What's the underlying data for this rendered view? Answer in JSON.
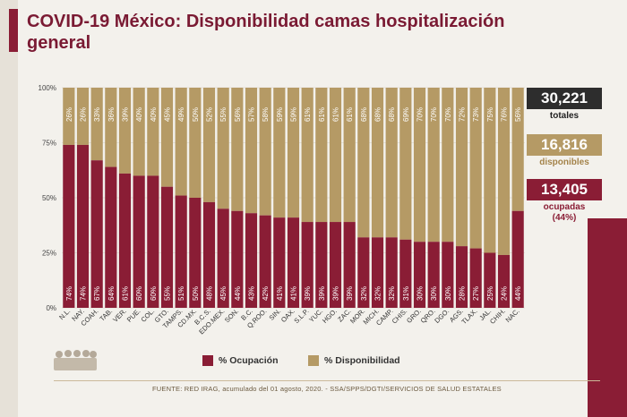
{
  "header": {
    "title": "COVID-19 México: Disponibilidad camas hospitalización general"
  },
  "stats": {
    "totales": {
      "value": "30,221",
      "label": "totales"
    },
    "disponibles": {
      "value": "16,816",
      "label": "disponibles"
    },
    "ocupadas": {
      "value": "13,405",
      "label": "ocupadas",
      "sub": "(44%)"
    }
  },
  "legend": {
    "ocupacion": "% Ocupación",
    "disponibilidad": "% Disponibilidad"
  },
  "footer": "FUENTE: RED IRAG, acumulado del 01  agosto, 2020. - SSA/SPPS/DGTI/SERVICIOS DE SALUD ESTATALES",
  "colors": {
    "ocupacion": "#8a1d35",
    "disponibilidad": "#b59a65",
    "totales": "#2d2d2d"
  },
  "chart_data": {
    "type": "bar",
    "stacked": true,
    "categories": [
      "N.L.",
      "NAY.",
      "COAH.",
      "TAB.",
      "VER.",
      "PUE.",
      "COL.",
      "GTO.",
      "TAMPS.",
      "CD.MX.",
      "B.C.S.",
      "EDO.MEX.",
      "SON.",
      "B.C.",
      "Q.ROO.",
      "SIN.",
      "OAX.",
      "S.L.P.",
      "YUC.",
      "HGO.",
      "ZAC.",
      "MOR.",
      "MICH.",
      "CAMP.",
      "CHIS.",
      "GRO.",
      "QRO.",
      "DGO.",
      "AGS.",
      "TLAX.",
      "JAL.",
      "CHIH.",
      "NAC."
    ],
    "series": [
      {
        "name": "% Ocupación",
        "values": [
          74,
          74,
          67,
          64,
          61,
          60,
          60,
          55,
          51,
          50,
          48,
          45,
          44,
          43,
          42,
          41,
          41,
          39,
          39,
          39,
          39,
          32,
          32,
          32,
          31,
          30,
          30,
          30,
          28,
          27,
          25,
          24,
          44
        ]
      },
      {
        "name": "% Disponibilidad",
        "values": [
          26,
          26,
          33,
          36,
          39,
          40,
          40,
          45,
          49,
          50,
          52,
          55,
          56,
          57,
          58,
          59,
          59,
          61,
          61,
          61,
          61,
          68,
          68,
          68,
          69,
          70,
          70,
          70,
          72,
          73,
          75,
          76,
          56
        ]
      }
    ],
    "yticks": [
      "0%",
      "25%",
      "50%",
      "75%",
      "100%"
    ],
    "ylim": [
      0,
      100
    ],
    "legend_position": "bottom"
  }
}
